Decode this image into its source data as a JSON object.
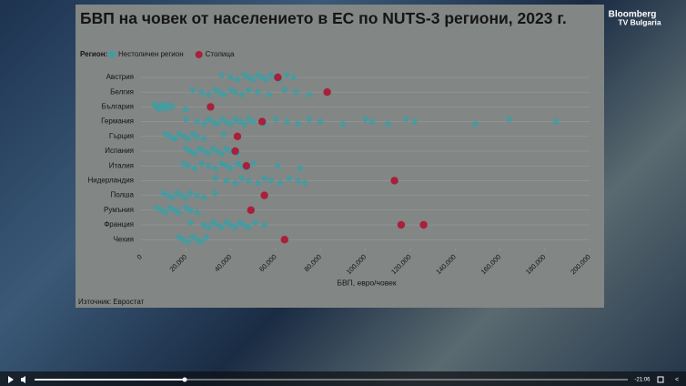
{
  "chart_data": {
    "type": "swarm",
    "title": "БВП на човек от населението в ЕС по NUTS-3 региони, 2023 г.",
    "legend_title": "Регион:",
    "x_label": "БВП, евро/човек",
    "source": "Източник: Евростат",
    "categories": [
      "Австрия",
      "Белгия",
      "България",
      "Германия",
      "Гърция",
      "Испания",
      "Италия",
      "Нидерландия",
      "Полша",
      "Румъния",
      "Франция",
      "Чехия"
    ],
    "xlim": [
      0,
      200000
    ],
    "xticks": [
      0,
      {
        "value": 20000,
        "label": "20,000"
      },
      {
        "value": 40000,
        "label": "40,000"
      },
      {
        "value": 60000,
        "label": "60,000"
      },
      {
        "value": 80000,
        "label": "80,000"
      },
      {
        "value": 100000,
        "label": "100,000"
      },
      {
        "value": 120000,
        "label": "120,000"
      },
      {
        "value": 140000,
        "label": "140,000"
      },
      {
        "value": 160000,
        "label": "160,000"
      },
      {
        "value": 180000,
        "label": "180,000"
      },
      {
        "value": 200000,
        "label": "200,000"
      }
    ],
    "grid": true,
    "series": [
      {
        "name": "Нестоличен регион",
        "color": "#3f9ea3",
        "values": [
          [
            36000,
            40000,
            43000,
            46000,
            48000,
            50000,
            52000,
            54000,
            56000,
            58000,
            60000,
            62000,
            65000,
            68000
          ],
          [
            23000,
            27000,
            30000,
            33000,
            35000,
            37000,
            40000,
            42000,
            45000,
            48000,
            52000,
            57000,
            64000,
            69000,
            75000
          ],
          [
            6000,
            7000,
            8000,
            9000,
            10000,
            11000,
            12000,
            14000,
            20000
          ],
          [
            20000,
            25000,
            28000,
            30000,
            32000,
            34000,
            36000,
            38000,
            40000,
            42000,
            44000,
            46000,
            48000,
            50000,
            55000,
            60000,
            65000,
            70000,
            75000,
            80000,
            90000,
            100000,
            103000,
            110000,
            118000,
            122000,
            149000,
            164000,
            185000
          ],
          [
            11000,
            13000,
            15000,
            17000,
            19000,
            21000,
            23000,
            25000,
            28000,
            37000
          ],
          [
            20000,
            22000,
            24000,
            26000,
            28000,
            30000,
            32000,
            34000,
            36000,
            38000,
            40000,
            43000
          ],
          [
            19000,
            21000,
            24000,
            27000,
            30000,
            33000,
            36000,
            38000,
            40000,
            43000,
            45000,
            47000,
            50000,
            61000,
            71000
          ],
          [
            33000,
            38000,
            42000,
            45000,
            48000,
            52000,
            55000,
            58000,
            62000,
            66000,
            70000,
            73000
          ],
          [
            10000,
            12000,
            14000,
            16000,
            18000,
            20000,
            22000,
            25000,
            28000,
            33000
          ],
          [
            7000,
            9000,
            11000,
            13000,
            15000,
            17000,
            20000,
            22000,
            25000
          ],
          [
            22000,
            28000,
            30000,
            32000,
            34000,
            36000,
            38000,
            40000,
            42000,
            44000,
            46000,
            48000,
            51000,
            55000
          ],
          [
            17000,
            19000,
            21000,
            23000,
            25000,
            27000,
            29000
          ]
        ]
      },
      {
        "name": "Столица",
        "color": "#a8203a",
        "values": [
          [
            61000
          ],
          [
            83000
          ],
          [
            31000
          ],
          [
            54000
          ],
          [
            43000
          ],
          [
            42000
          ],
          [
            47000
          ],
          [
            113000
          ],
          [
            55000
          ],
          [
            49000
          ],
          [
            116000,
            126000
          ],
          [
            64000
          ]
        ]
      }
    ]
  },
  "overlay": {
    "logo_top": "Bloomberg",
    "logo_bottom": "TV Bulgaria",
    "time": "-21:06"
  }
}
